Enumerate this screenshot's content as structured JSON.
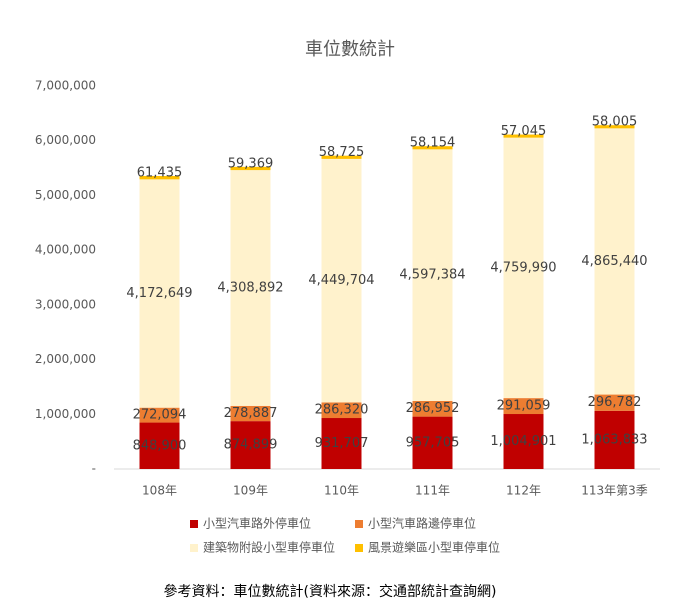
{
  "chart_data": {
    "type": "stacked-bar",
    "title": "車位數統計",
    "categories": [
      "108年",
      "109年",
      "110年",
      "111年",
      "112年",
      "113年第3季"
    ],
    "series": [
      {
        "name": "小型汽車路外停車位",
        "color": "#c00000",
        "values": [
          848900,
          874899,
          931707,
          957705,
          1004901,
          1063833
        ],
        "value_labels": [
          "848,900",
          "874,899",
          "931,707",
          "957,705",
          "1,004,901",
          "1,063,833"
        ]
      },
      {
        "name": "小型汽車路邊停車位",
        "color": "#ed7d31",
        "values": [
          272094,
          278887,
          286320,
          286952,
          291059,
          296782
        ],
        "value_labels": [
          "272,094",
          "278,887",
          "286,320",
          "286,952",
          "291,059",
          "296,782"
        ]
      },
      {
        "name": "建築物附設小型車停車位",
        "color": "#fff2cc",
        "values": [
          4172649,
          4308892,
          4449704,
          4597384,
          4759990,
          4865440
        ],
        "value_labels": [
          "4,172,649",
          "4,308,892",
          "4,449,704",
          "4,597,384",
          "4,759,990",
          "4,865,440"
        ]
      },
      {
        "name": "風景遊樂區小型車停車位",
        "color": "#ffc000",
        "values": [
          61435,
          59369,
          58725,
          58154,
          57045,
          58005
        ],
        "value_labels": [
          "61,435",
          "59,369",
          "58,725",
          "58,154",
          "57,045",
          "58,005"
        ]
      }
    ],
    "ylim": [
      0,
      7000000
    ],
    "yticks": [
      {
        "value": 0,
        "label": "-"
      },
      {
        "value": 1000000,
        "label": "1,000,000"
      },
      {
        "value": 2000000,
        "label": "2,000,000"
      },
      {
        "value": 3000000,
        "label": "3,000,000"
      },
      {
        "value": 4000000,
        "label": "4,000,000"
      },
      {
        "value": 5000000,
        "label": "5,000,000"
      },
      {
        "value": 6000000,
        "label": "6,000,000"
      },
      {
        "value": 7000000,
        "label": "7,000,000"
      }
    ],
    "grid": false,
    "legend": "bottom",
    "note": "參考資料：車位數統計(資料來源：交通部統計查詢網)"
  }
}
